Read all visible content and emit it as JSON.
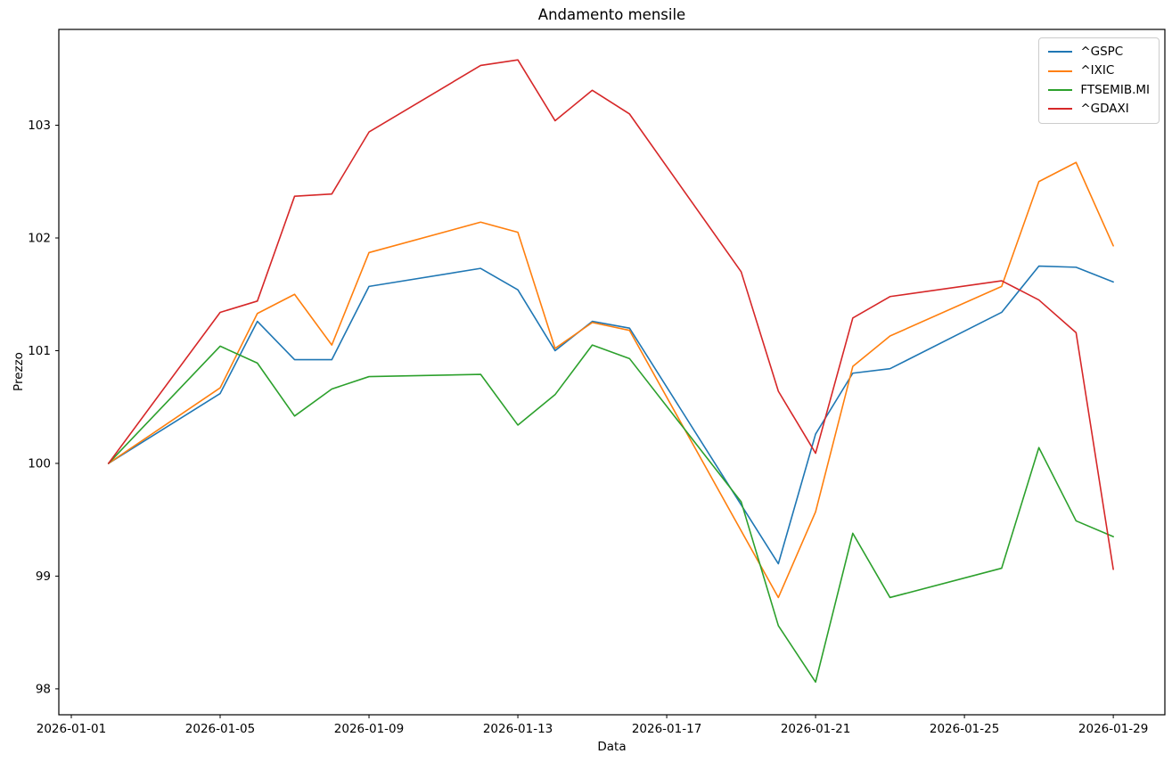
{
  "chart_data": {
    "type": "line",
    "title": "Andamento mensile",
    "xlabel": "Data",
    "ylabel": "Prezzo",
    "grid": false,
    "legend_position": "upper right",
    "x": [
      "2026-01-02",
      "2026-01-05",
      "2026-01-06",
      "2026-01-07",
      "2026-01-08",
      "2026-01-09",
      "2026-01-12",
      "2026-01-13",
      "2026-01-14",
      "2026-01-15",
      "2026-01-16",
      "2026-01-19",
      "2026-01-20",
      "2026-01-21",
      "2026-01-22",
      "2026-01-23",
      "2026-01-26",
      "2026-01-27",
      "2026-01-28",
      "2026-01-29"
    ],
    "series": [
      {
        "name": "^GSPC",
        "color": "#1f77b4",
        "values": [
          100.0,
          100.62,
          101.26,
          100.92,
          100.92,
          101.57,
          101.73,
          101.54,
          101.0,
          101.26,
          101.2,
          null,
          99.11,
          100.26,
          100.8,
          100.84,
          101.34,
          101.75,
          101.74,
          101.61
        ]
      },
      {
        "name": "^IXIC",
        "color": "#ff7f0e",
        "values": [
          100.0,
          100.67,
          101.33,
          101.5,
          101.05,
          101.87,
          102.14,
          102.05,
          101.02,
          101.25,
          101.18,
          null,
          98.81,
          99.57,
          100.86,
          101.13,
          101.57,
          102.5,
          102.67,
          101.93
        ]
      },
      {
        "name": "FTSEMIB.MI",
        "color": "#2ca02c",
        "values": [
          100.0,
          101.04,
          100.89,
          100.42,
          100.66,
          100.77,
          100.79,
          100.34,
          100.61,
          101.05,
          100.93,
          99.66,
          98.56,
          98.06,
          99.38,
          98.81,
          99.07,
          100.14,
          99.49,
          99.35
        ]
      },
      {
        "name": "^GDAXI",
        "color": "#d62728",
        "values": [
          100.0,
          101.34,
          101.44,
          102.37,
          102.39,
          102.94,
          103.53,
          103.58,
          103.04,
          103.31,
          103.1,
          101.7,
          100.64,
          100.09,
          101.29,
          101.48,
          101.62,
          101.45,
          101.16,
          99.06
        ]
      }
    ],
    "x_ticks": [
      "2026-01-01",
      "2026-01-05",
      "2026-01-09",
      "2026-01-13",
      "2026-01-17",
      "2026-01-21",
      "2026-01-25",
      "2026-01-29"
    ],
    "y_ticks": [
      98,
      99,
      100,
      101,
      102,
      103
    ],
    "xlim_days": [
      0.665,
      30.386
    ],
    "ylim": [
      97.77,
      103.85
    ]
  }
}
